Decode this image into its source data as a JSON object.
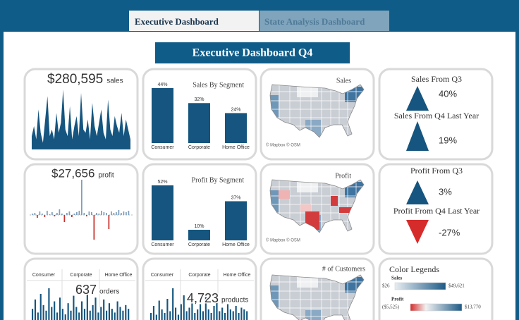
{
  "tabs": [
    "Executive Dashboard",
    "State Analysis Dashboard"
  ],
  "title": "Executive Dashboard Q4",
  "kpis": [
    {
      "value": "$280,595",
      "label": "sales",
      "color": "#15557f",
      "spark": [
        20,
        35,
        15,
        60,
        25,
        10,
        45,
        80,
        20,
        30,
        15,
        55,
        25,
        40,
        90,
        30,
        20,
        65,
        15,
        35,
        50,
        20,
        85,
        30,
        25,
        45,
        15,
        70,
        35,
        20,
        40,
        60,
        25,
        15,
        75,
        30,
        20,
        50,
        35,
        25,
        55,
        20,
        45,
        30,
        15
      ]
    },
    {
      "value": "$27,656",
      "label": "profit",
      "pos_color": "#7f9fbc",
      "neg_color": "#c9302c",
      "spark": [
        2,
        3,
        -4,
        5,
        2,
        -3,
        6,
        1,
        4,
        -2,
        3,
        8,
        2,
        -10,
        3,
        5,
        -3,
        2,
        4,
        6,
        50,
        3,
        -2,
        5,
        4,
        -35,
        3,
        2,
        6,
        4,
        3,
        -20,
        5,
        3,
        4,
        7,
        3,
        5,
        4,
        6
      ]
    }
  ],
  "segments": [
    {
      "title": "Sales By Segment",
      "color": "#15557f",
      "categories": [
        "Consumer",
        "Corporate",
        "Home Office"
      ],
      "values": [
        44,
        32,
        24
      ],
      "value_labels": [
        "44%",
        "32%",
        "24%"
      ]
    },
    {
      "title": "Profit By Segment",
      "color": "#15557f",
      "categories": [
        "Consumer",
        "Corporate",
        "Home Office"
      ],
      "values": [
        52,
        10,
        37
      ],
      "value_labels": [
        "52%",
        "10%",
        "37%"
      ]
    }
  ],
  "maps": [
    {
      "title": "Sales",
      "credit": "© Mapbox © OSM"
    },
    {
      "title": "Profit",
      "credit": "© Mapbox © OSM"
    },
    {
      "title": "# of Customers"
    }
  ],
  "comparisons": [
    {
      "label": "Sales From Q3",
      "value": "40%",
      "direction": "up",
      "color": "#15557f"
    },
    {
      "label": "Sales From Q4 Last Year",
      "value": "19%",
      "direction": "up",
      "color": "#15557f"
    },
    {
      "label": "Profit From Q3",
      "value": "3%",
      "direction": "up",
      "color": "#15557f"
    },
    {
      "label": "Profit From Q4 Last Year",
      "value": "-27%",
      "direction": "down",
      "color": "#d62b2b"
    }
  ],
  "breakdowns": [
    {
      "headers": [
        "Consumer",
        "Corporate",
        "Home Office"
      ],
      "value": "637",
      "label": "orders",
      "color": "#15557f",
      "bars": [
        30,
        55,
        20,
        70,
        40,
        25,
        85,
        35,
        50,
        20,
        60,
        30,
        15,
        45,
        25,
        65,
        35,
        20,
        50,
        30,
        75,
        25,
        40,
        60,
        20,
        35,
        55,
        25,
        45,
        30,
        20,
        50,
        35,
        25,
        40,
        30
      ]
    },
    {
      "headers": [
        "Consumer",
        "Corporate",
        "Home Office"
      ],
      "value": "4,723",
      "label": "products",
      "color": "#15557f",
      "bars": [
        20,
        40,
        15,
        55,
        30,
        20,
        60,
        25,
        90,
        35,
        15,
        45,
        70,
        25,
        35,
        50,
        20,
        30,
        45,
        25,
        65,
        30,
        20,
        40,
        55,
        25,
        35,
        20,
        45,
        30,
        25,
        40,
        20,
        35,
        30,
        25
      ]
    }
  ],
  "legend": {
    "title": "Color Legends",
    "items": [
      {
        "name": "Sales",
        "min": "$26",
        "max": "$49,621"
      },
      {
        "name": "Profit",
        "min": "($5,525)",
        "max": "$13,770"
      }
    ]
  }
}
